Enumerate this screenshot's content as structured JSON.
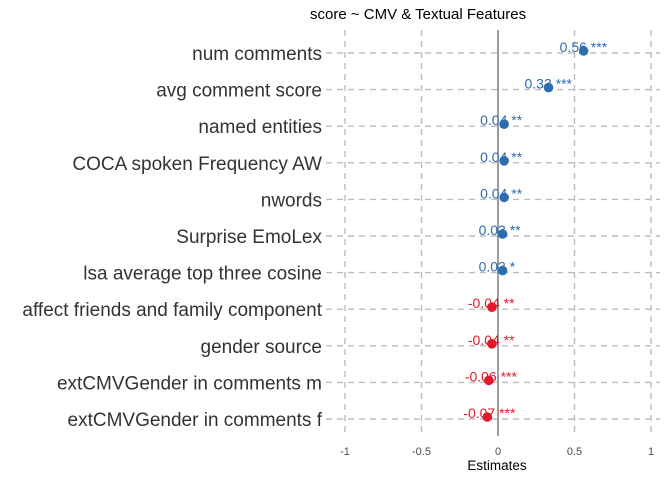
{
  "chart_data": {
    "type": "scatter",
    "title": "score  ~  CMV & Textual Features",
    "xlabel": "Estimates",
    "ylabel": "",
    "xlim": [
      -1,
      1
    ],
    "xticks": [
      "-1",
      "-0.5",
      "0",
      "0.5",
      "1"
    ],
    "xtick_values": [
      -1,
      -0.5,
      0,
      0.5,
      1
    ],
    "grid": true,
    "colors": {
      "positive": "#2e6db0",
      "negative": "#e3192a",
      "zero_line": "#4d4d4d",
      "grid": "#bdbdbd"
    },
    "categories": [
      "num comments",
      "avg comment score",
      "named entities",
      "COCA spoken Frequency AW",
      "nwords",
      "Surprise EmoLex",
      "lsa average top three cosine",
      "affect friends and family component",
      "gender source",
      "extCMVGender in comments m",
      "extCMVGender in comments f"
    ],
    "values": [
      0.56,
      0.33,
      0.04,
      0.04,
      0.04,
      0.03,
      0.03,
      -0.04,
      -0.04,
      -0.06,
      -0.07
    ],
    "labels": [
      "0.56 ***",
      "0.33 ***",
      "0.04 **",
      "0.04 **",
      "0.04 **",
      "0.03 **",
      "0.03 *",
      "-0.04 **",
      "-0.04 **",
      "-0.06 ***",
      "-0.07 ***"
    ]
  }
}
